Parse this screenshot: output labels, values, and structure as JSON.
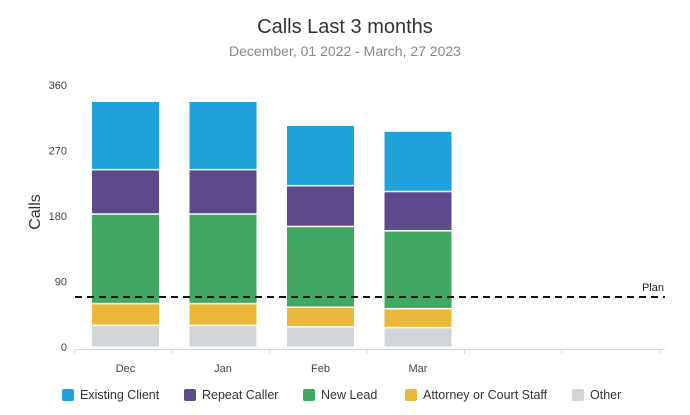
{
  "chart_data": {
    "type": "bar",
    "stacked": true,
    "title": "Calls Last 3 months",
    "subtitle": "December, 01 2022 - March, 27 2023",
    "ylabel": "Calls",
    "xlabel": "",
    "ylim": [
      0,
      360
    ],
    "yticks": [
      "0",
      "90",
      "180",
      "270",
      "360"
    ],
    "categories": [
      "Dec",
      "Jan",
      "Feb",
      "Mar"
    ],
    "series": [
      {
        "name": "Other",
        "color": "#d1d5da",
        "values": [
          30,
          30,
          28,
          27
        ]
      },
      {
        "name": "Attorney or Court Staff",
        "color": "#ebb93a",
        "values": [
          30,
          30,
          27,
          26
        ]
      },
      {
        "name": "New Lead",
        "color": "#41a864",
        "values": [
          123,
          123,
          111,
          107
        ]
      },
      {
        "name": "Repeat Caller",
        "color": "#5c4a8a",
        "values": [
          61,
          61,
          56,
          54
        ]
      },
      {
        "name": "Existing Client",
        "color": "#1fa2d9",
        "values": [
          94,
          94,
          83,
          83
        ]
      }
    ],
    "plan": {
      "label": "Plan",
      "value": 70
    },
    "legend": {
      "placement": "bottom",
      "items": [
        {
          "label": "Existing Client",
          "color": "#1fa2d9"
        },
        {
          "label": "Repeat Caller",
          "color": "#5c4a8a"
        },
        {
          "label": "New Lead",
          "color": "#41a864"
        },
        {
          "label": "Attorney or Court Staff",
          "color": "#ebb93a"
        },
        {
          "label": "Other",
          "color": "#d1d5da"
        }
      ]
    },
    "grid": false
  }
}
